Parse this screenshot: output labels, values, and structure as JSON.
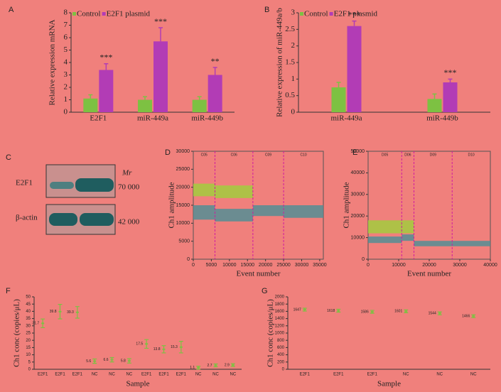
{
  "chart_data": [
    {
      "type": "bar",
      "label": "A",
      "ylabel": "Relative expression mRNA",
      "categories": [
        "E2F1",
        "miR-449a",
        "miR-449b"
      ],
      "series": [
        {
          "name": "Control",
          "color": "#7dc142",
          "values": [
            1.1,
            1.0,
            1.0
          ],
          "errors": [
            0.3,
            0.25,
            0.25
          ]
        },
        {
          "name": "E2F1 plasmid",
          "color": "#b23cb5",
          "values": [
            3.4,
            5.7,
            3.0
          ],
          "errors": [
            0.5,
            1.1,
            0.6
          ]
        }
      ],
      "annotations": [
        "***",
        "***",
        "**"
      ],
      "ylim": [
        0,
        8
      ],
      "yticks": [
        0,
        1,
        2,
        3,
        4,
        5,
        6,
        7,
        8
      ]
    },
    {
      "type": "bar",
      "label": "B",
      "ylabel": "Relative expression of miR-449a/b",
      "categories": [
        "miR-449a",
        "miR-449b"
      ],
      "series": [
        {
          "name": "Control",
          "color": "#7dc142",
          "values": [
            0.75,
            0.4
          ],
          "errors": [
            0.15,
            0.15
          ]
        },
        {
          "name": "E2F1 plasmid",
          "color": "#b23cb5",
          "values": [
            2.6,
            0.9
          ],
          "errors": [
            0.15,
            0.1
          ]
        }
      ],
      "annotations": [
        "***",
        "***"
      ],
      "ylim": [
        0,
        3
      ],
      "yticks": [
        0,
        0.5,
        1,
        1.5,
        2,
        2.5,
        3
      ]
    },
    {
      "type": "blot",
      "label": "C",
      "mr_label": "Mr",
      "rows": [
        {
          "name": "E2F1",
          "mr": "70 000"
        },
        {
          "name": "β-actin",
          "mr": "42 000"
        }
      ]
    },
    {
      "type": "droplet",
      "label": "D",
      "xlabel": "Event number",
      "ylabel": "Ch1 amplitude",
      "wells": [
        "C05",
        "C06",
        "C09",
        "C10"
      ],
      "dividers": [
        6000,
        16500,
        25000
      ],
      "clusters": [
        {
          "color": "#4a8f96",
          "x": [
            0,
            6000
          ],
          "y": [
            11000,
            15000
          ]
        },
        {
          "color": "#4a8f96",
          "x": [
            6000,
            16500
          ],
          "y": [
            10500,
            14000
          ]
        },
        {
          "color": "#4a8f96",
          "x": [
            16500,
            25000
          ],
          "y": [
            12000,
            15000
          ]
        },
        {
          "color": "#4a8f96",
          "x": [
            25000,
            36000
          ],
          "y": [
            11500,
            15000
          ]
        },
        {
          "color": "#9ed13a",
          "x": [
            0,
            6000
          ],
          "y": [
            17500,
            21000
          ]
        },
        {
          "color": "#9ed13a",
          "x": [
            6000,
            16500
          ],
          "y": [
            17000,
            20500
          ]
        }
      ],
      "xlim": [
        0,
        36000
      ],
      "xticks": [
        0,
        5000,
        10000,
        15000,
        20000,
        25000,
        30000,
        35000
      ],
      "ylim": [
        0,
        30000
      ],
      "yticks": [
        0,
        5000,
        10000,
        15000,
        20000,
        25000,
        30000
      ]
    },
    {
      "type": "droplet",
      "label": "E",
      "xlabel": "Event number",
      "ylabel": "Ch1 amplitude",
      "wells": [
        "D05",
        "D06",
        "D09",
        "D10"
      ],
      "dividers": [
        11000,
        15000,
        27500
      ],
      "clusters": [
        {
          "color": "#4a8f96",
          "x": [
            0,
            11000
          ],
          "y": [
            7500,
            10500
          ]
        },
        {
          "color": "#4a8f96",
          "x": [
            11000,
            15000
          ],
          "y": [
            8500,
            11500
          ]
        },
        {
          "color": "#4a8f96",
          "x": [
            15000,
            27500
          ],
          "y": [
            6000,
            8500
          ]
        },
        {
          "color": "#4a8f96",
          "x": [
            27500,
            40000
          ],
          "y": [
            6000,
            8500
          ]
        },
        {
          "color": "#9ed13a",
          "x": [
            0,
            11000
          ],
          "y": [
            12000,
            18000
          ]
        },
        {
          "color": "#9ed13a",
          "x": [
            11000,
            15000
          ],
          "y": [
            12000,
            18000
          ]
        }
      ],
      "xlim": [
        0,
        40000
      ],
      "xticks": [
        0,
        10000,
        20000,
        30000,
        40000
      ],
      "ylim": [
        0,
        50000
      ],
      "yticks": [
        0,
        10000,
        20000,
        30000,
        40000,
        50000
      ]
    },
    {
      "type": "errorbar",
      "label": "F",
      "xlabel": "Sample",
      "ylabel": "Ch1 conc (copies/μL)",
      "color": "#7dc142",
      "categories": [
        "E2F1",
        "E2F1",
        "E2F1",
        "NC",
        "NC",
        "NC",
        "E2F1",
        "E2F1",
        "E2F1",
        "NC",
        "NC",
        "NC"
      ],
      "values": [
        31.7,
        39.8,
        39.3,
        5.6,
        6.6,
        5.8,
        17.5,
        13.8,
        15.3,
        1.1,
        2.7,
        2.9
      ],
      "errors": [
        3,
        5,
        4,
        1.5,
        1.5,
        1.5,
        3,
        2.5,
        4,
        1,
        1,
        1
      ],
      "ylim": [
        0,
        50
      ],
      "yticks": [
        0,
        5,
        10,
        15,
        20,
        25,
        30,
        35,
        40,
        45,
        50
      ]
    },
    {
      "type": "errorbar",
      "label": "G",
      "xlabel": "Sample",
      "ylabel": "Ch1 conc (copies/μL)",
      "color": "#7dc142",
      "categories": [
        "E2F1",
        "E2F1",
        "E2F1",
        "NC",
        "NC",
        "NC"
      ],
      "values": [
        1647,
        1618,
        1586,
        1601,
        1544,
        1466
      ],
      "errors": [
        40,
        40,
        40,
        40,
        40,
        40
      ],
      "ylim": [
        0,
        2000
      ],
      "yticks": [
        0,
        200,
        400,
        600,
        800,
        1000,
        1200,
        1400,
        1600,
        1800,
        2000
      ]
    }
  ]
}
